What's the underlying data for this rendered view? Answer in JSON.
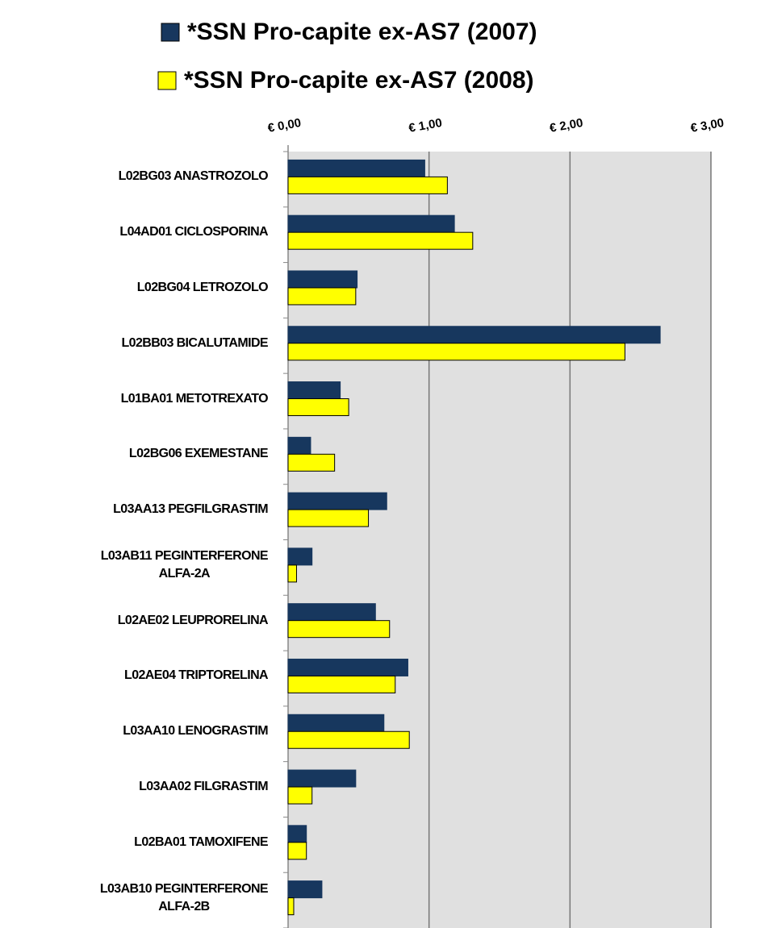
{
  "chart_data": {
    "type": "barh",
    "categories": [
      "L02BG03 ANASTROZOLO",
      "L04AD01 CICLOSPORINA",
      "L02BG04 LETROZOLO",
      "L02BB03 BICALUTAMIDE",
      "L01BA01 METOTREXATO",
      "L02BG06 EXEMESTANE",
      "L03AA13 PEGFILGRASTIM",
      "L03AB11 PEGINTERFERONE\nALFA-2A",
      "L02AE02 LEUPRORELINA",
      "L02AE04 TRIPTORELINA",
      "L03AA10 LENOGRASTIM",
      "L03AA02 FILGRASTIM",
      "L02BA01 TAMOXIFENE",
      "L03AB10 PEGINTERFERONE\nALFA-2B"
    ],
    "series": [
      {
        "name": "*SSN Pro-capite ex-AS7 (2007)",
        "color": "#17375e",
        "values": [
          0.97,
          1.18,
          0.49,
          2.64,
          0.37,
          0.16,
          0.7,
          0.17,
          0.62,
          0.85,
          0.68,
          0.48,
          0.13,
          0.24
        ]
      },
      {
        "name": "*SSN Pro-capite ex-AS7 (2008)",
        "color": "#ffff00",
        "values": [
          1.13,
          1.31,
          0.48,
          2.39,
          0.43,
          0.33,
          0.57,
          0.06,
          0.72,
          0.76,
          0.86,
          0.17,
          0.13,
          0.04
        ]
      }
    ],
    "xlim": [
      0,
      3
    ],
    "xticks": [
      {
        "value": 0,
        "label": "€ 0,00"
      },
      {
        "value": 1,
        "label": "€ 1,00"
      },
      {
        "value": 2,
        "label": "€ 2,00"
      },
      {
        "value": 3,
        "label": "€ 3,00"
      }
    ],
    "grid": true
  }
}
